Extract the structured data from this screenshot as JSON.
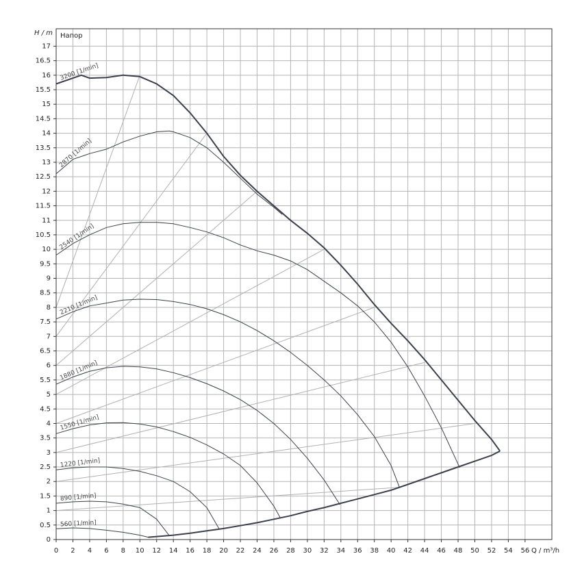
{
  "chart_data": {
    "type": "line",
    "title": "Напор",
    "y_label": "H / m",
    "x_label": "Q / m³/h",
    "xlim": [
      0,
      59.2
    ],
    "ylim": [
      0,
      17.6
    ],
    "xticks": [
      0,
      2,
      4,
      6,
      8,
      10,
      12,
      14,
      16,
      18,
      20,
      22,
      24,
      26,
      28,
      30,
      32,
      34,
      36,
      38,
      40,
      42,
      44,
      46,
      48,
      50,
      52,
      54,
      56
    ],
    "yticks": [
      0,
      0.5,
      1,
      1.5,
      2,
      2.5,
      3,
      3.5,
      4,
      4.5,
      5,
      5.5,
      6,
      6.5,
      7,
      7.5,
      8,
      8.5,
      9,
      9.5,
      10,
      10.5,
      11,
      11.5,
      12,
      12.5,
      13,
      13.5,
      14,
      14.5,
      15,
      15.5,
      16,
      16.5,
      17
    ],
    "grid": true,
    "series": [
      {
        "name": "3200 [1/min]",
        "color": "#3a3f4a",
        "x": [
          0,
          2,
          3,
          4,
          6,
          8,
          10,
          12,
          14,
          16,
          18,
          20,
          22,
          24,
          26,
          28,
          30,
          32,
          34,
          36,
          38,
          40,
          42,
          44,
          46,
          48,
          50,
          52,
          53
        ],
        "values": [
          15.7,
          15.9,
          16.0,
          15.9,
          15.92,
          16.0,
          15.95,
          15.7,
          15.3,
          14.7,
          14.0,
          13.2,
          12.55,
          12.0,
          11.5,
          11.0,
          10.55,
          10.05,
          9.45,
          8.8,
          8.1,
          7.45,
          6.85,
          6.2,
          5.5,
          4.8,
          4.1,
          3.45,
          3.05
        ]
      },
      {
        "name": "2870 [1/min]",
        "color": "#3a3f4a",
        "x": [
          0,
          2,
          4,
          6,
          8,
          10,
          12,
          13.5,
          14,
          16,
          18,
          20,
          22,
          24,
          26,
          27
        ],
        "values": [
          12.6,
          13.1,
          13.3,
          13.45,
          13.7,
          13.9,
          14.05,
          14.08,
          14.05,
          13.85,
          13.5,
          13.0,
          12.45,
          11.9,
          11.45,
          11.2
        ]
      },
      {
        "name": "2540 [1/min]",
        "color": "#3a3f4a",
        "x": [
          0,
          2,
          4,
          6,
          8,
          10,
          12,
          14,
          16,
          18,
          20,
          22,
          24,
          26,
          28,
          30,
          32,
          34,
          36,
          38,
          40,
          42,
          44,
          46,
          48,
          48.2
        ],
        "values": [
          9.8,
          10.2,
          10.5,
          10.75,
          10.88,
          10.93,
          10.93,
          10.88,
          10.75,
          10.6,
          10.4,
          10.15,
          9.95,
          9.8,
          9.6,
          9.3,
          8.9,
          8.5,
          8.05,
          7.5,
          6.8,
          5.95,
          4.95,
          3.85,
          2.6,
          2.48
        ]
      },
      {
        "name": "2210 [1/min]",
        "color": "#3a3f4a",
        "x": [
          0,
          2,
          4,
          6,
          8,
          10,
          12,
          14,
          16,
          18,
          20,
          22,
          24,
          26,
          28,
          30,
          32,
          34,
          36,
          38,
          40,
          41
        ],
        "values": [
          7.6,
          7.85,
          8.05,
          8.15,
          8.25,
          8.28,
          8.27,
          8.2,
          8.1,
          7.95,
          7.75,
          7.5,
          7.2,
          6.85,
          6.45,
          6.0,
          5.5,
          4.95,
          4.3,
          3.55,
          2.55,
          1.8
        ]
      },
      {
        "name": "1880 [1/min]",
        "color": "#3a3f4a",
        "x": [
          0,
          2,
          4,
          6,
          8,
          10,
          12,
          14,
          16,
          18,
          20,
          22,
          24,
          26,
          28,
          30,
          32,
          33.9
        ],
        "values": [
          5.35,
          5.6,
          5.8,
          5.92,
          5.97,
          5.95,
          5.88,
          5.75,
          5.58,
          5.37,
          5.12,
          4.82,
          4.45,
          4.0,
          3.45,
          2.8,
          2.05,
          1.2
        ]
      },
      {
        "name": "1550 [1/min]",
        "color": "#3a3f4a",
        "x": [
          0,
          2,
          4,
          6,
          8,
          10,
          12,
          14,
          16,
          18,
          20,
          22,
          24,
          26,
          26.8
        ],
        "values": [
          3.65,
          3.82,
          3.95,
          4.02,
          4.03,
          3.98,
          3.88,
          3.72,
          3.52,
          3.26,
          2.95,
          2.55,
          1.95,
          1.15,
          0.73
        ]
      },
      {
        "name": "1220 [1/min]",
        "color": "#3a3f4a",
        "x": [
          0,
          2,
          4,
          6,
          8,
          10,
          12,
          14,
          16,
          18,
          19.5
        ],
        "values": [
          2.4,
          2.47,
          2.5,
          2.5,
          2.45,
          2.35,
          2.2,
          2.0,
          1.65,
          1.1,
          0.35
        ]
      },
      {
        "name": "890 [1/min]",
        "color": "#3a3f4a",
        "x": [
          0,
          2,
          4,
          6,
          8,
          10,
          12,
          13.5
        ],
        "values": [
          1.25,
          1.3,
          1.32,
          1.3,
          1.22,
          1.1,
          0.7,
          0.14
        ]
      },
      {
        "name": "560 [1/min]",
        "color": "#3a3f4a",
        "x": [
          0,
          2,
          4,
          6,
          8,
          10,
          11
        ],
        "values": [
          0.37,
          0.4,
          0.38,
          0.32,
          0.25,
          0.15,
          0.08
        ]
      }
    ],
    "boundary": {
      "color": "#3a3f4a",
      "x": [
        11,
        14,
        16,
        18,
        20,
        22,
        24,
        26,
        28,
        30,
        32,
        34,
        36,
        38,
        40,
        42,
        44,
        46,
        48,
        50,
        52,
        53
      ],
      "values": [
        0.08,
        0.15,
        0.22,
        0.3,
        0.38,
        0.48,
        0.58,
        0.7,
        0.82,
        0.97,
        1.1,
        1.25,
        1.4,
        1.55,
        1.7,
        1.9,
        2.1,
        2.3,
        2.5,
        2.7,
        2.9,
        3.05
      ]
    },
    "guide_lines": [
      {
        "x": [
          0,
          10
        ],
        "values": [
          8,
          16
        ]
      },
      {
        "x": [
          0,
          18
        ],
        "values": [
          7,
          14
        ]
      },
      {
        "x": [
          0,
          24
        ],
        "values": [
          6,
          12
        ]
      },
      {
        "x": [
          0,
          32
        ],
        "values": [
          5,
          10
        ]
      },
      {
        "x": [
          0,
          38
        ],
        "values": [
          4,
          8
        ]
      },
      {
        "x": [
          0,
          44
        ],
        "values": [
          3,
          6.1
        ]
      },
      {
        "x": [
          0,
          50
        ],
        "values": [
          2,
          4
        ]
      },
      {
        "x": [
          0,
          41
        ],
        "values": [
          1,
          1.8
        ]
      }
    ],
    "guide_color": "#b0b0b0"
  }
}
